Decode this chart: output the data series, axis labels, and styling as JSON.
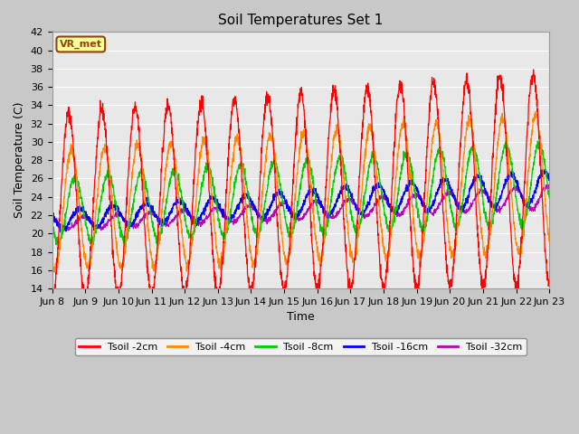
{
  "title": "Soil Temperatures Set 1",
  "xlabel": "Time",
  "ylabel": "Soil Temperature (C)",
  "ylim": [
    14,
    42
  ],
  "yticks": [
    14,
    16,
    18,
    20,
    22,
    24,
    26,
    28,
    30,
    32,
    34,
    36,
    38,
    40,
    42
  ],
  "bg_color": "#e8e8e8",
  "grid_color": "#ffffff",
  "series_colors": [
    "#ff0000",
    "#ff8800",
    "#00cc00",
    "#0000ff",
    "#bb00bb"
  ],
  "series_labels": [
    "Tsoil -2cm",
    "Tsoil -4cm",
    "Tsoil -8cm",
    "Tsoil -16cm",
    "Tsoil -32cm"
  ],
  "annotation_text": "VR_met",
  "annotation_bg": "#ffff99",
  "annotation_border": "#8b4513",
  "n_days": 15,
  "start_day": 8,
  "points_per_day": 144,
  "figsize": [
    6.4,
    4.8
  ],
  "dpi": 100
}
